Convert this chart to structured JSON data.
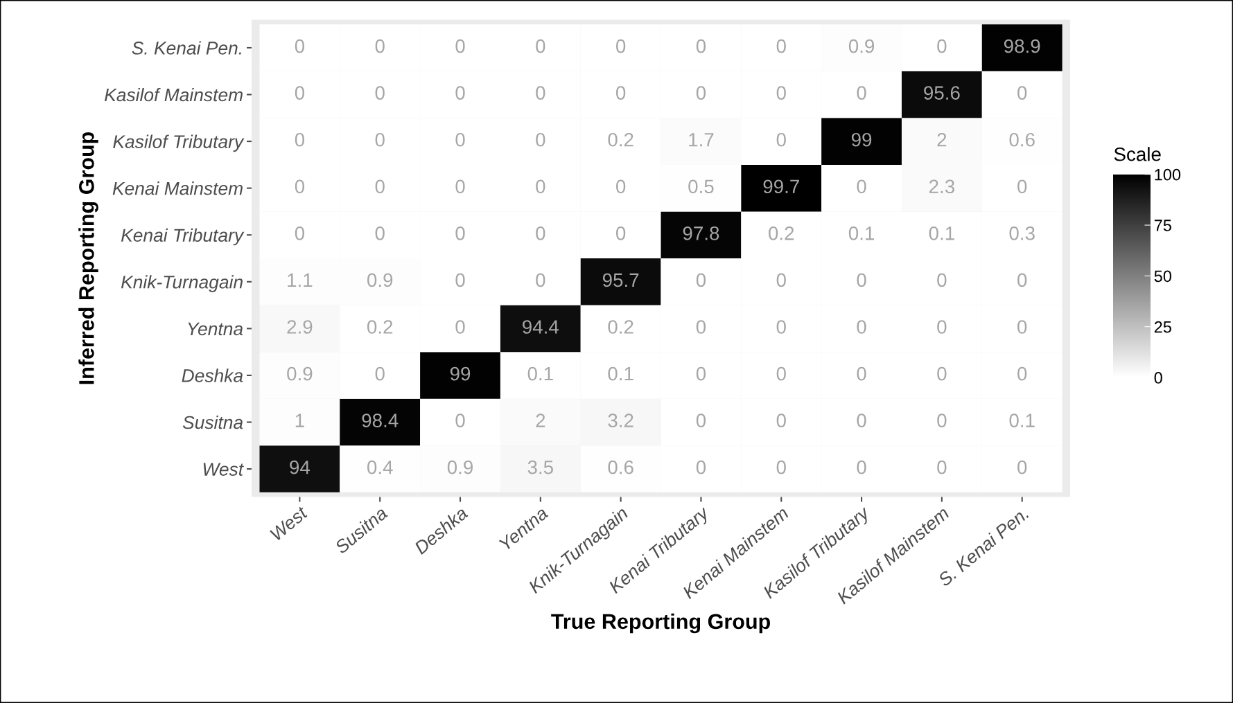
{
  "chart_data": {
    "type": "heatmap",
    "xlabel": "True Reporting Group",
    "ylabel": "Inferred Reporting Group",
    "clabel": "Scale",
    "categories": [
      "West",
      "Susitna",
      "Deshka",
      "Yentna",
      "Knik-Turnagain",
      "Kenai Tributary",
      "Kenai Mainstem",
      "Kasilof Tributary",
      "Kasilof Mainstem",
      "S. Kenai Pen."
    ],
    "y_categories": [
      "S. Kenai Pen.",
      "Kasilof Mainstem",
      "Kasilof Tributary",
      "Kenai Mainstem",
      "Kenai Tributary",
      "Knik-Turnagain",
      "Yentna",
      "Deshka",
      "Susitna",
      "West"
    ],
    "cells": [
      [
        0,
        0,
        0,
        0,
        0,
        0,
        0,
        0.9,
        0,
        98.9
      ],
      [
        0,
        0,
        0,
        0,
        0,
        0,
        0,
        0,
        95.6,
        0
      ],
      [
        0,
        0,
        0,
        0,
        0.2,
        1.7,
        0,
        99,
        2,
        0.6
      ],
      [
        0,
        0,
        0,
        0,
        0,
        0.5,
        99.7,
        0,
        2.3,
        0
      ],
      [
        0,
        0,
        0,
        0,
        0,
        97.8,
        0.2,
        0.1,
        0.1,
        0.3
      ],
      [
        1.1,
        0.9,
        0,
        0,
        95.7,
        0,
        0,
        0,
        0,
        0
      ],
      [
        2.9,
        0.2,
        0,
        94.4,
        0.2,
        0,
        0,
        0,
        0,
        0
      ],
      [
        0.9,
        0,
        99,
        0.1,
        0.1,
        0,
        0,
        0,
        0,
        0
      ],
      [
        1,
        98.4,
        0,
        2,
        3.2,
        0,
        0,
        0,
        0,
        0.1
      ],
      [
        94,
        0.4,
        0.9,
        3.5,
        0.6,
        0,
        0,
        0,
        0,
        0
      ]
    ],
    "clim": [
      0,
      100
    ],
    "cticks": [
      0,
      25,
      50,
      75,
      100
    ],
    "data_labels": true
  }
}
